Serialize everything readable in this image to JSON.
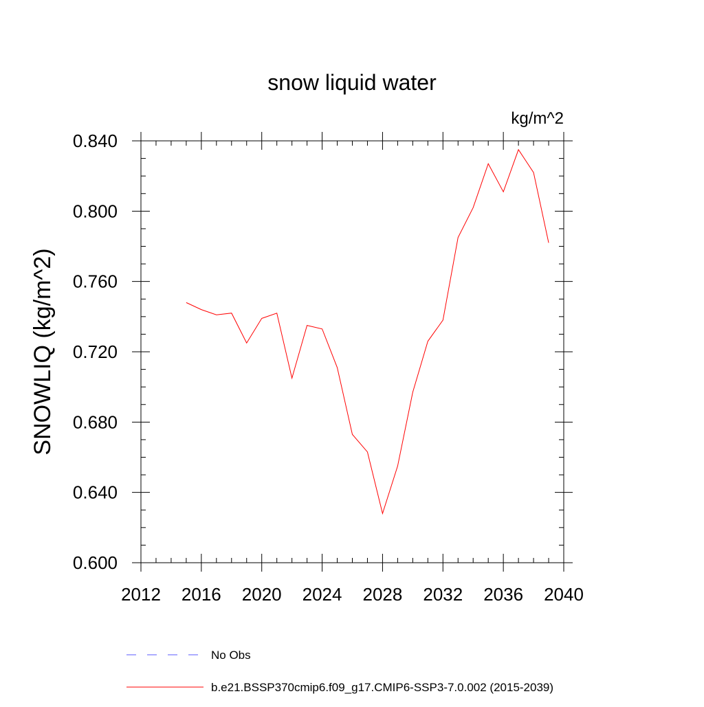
{
  "chart_data": {
    "type": "line",
    "title": "snow liquid water",
    "units_label": "kg/m^2",
    "ylabel": "SNOWLIQ  (kg/m^2)",
    "xlabel": "",
    "xlim": [
      2012,
      2040
    ],
    "ylim": [
      0.6,
      0.84
    ],
    "x_ticks": [
      2012,
      2016,
      2020,
      2024,
      2028,
      2032,
      2036,
      2040
    ],
    "x_tick_labels": [
      "2012",
      "2016",
      "2020",
      "2024",
      "2028",
      "2032",
      "2036",
      "2040"
    ],
    "x_minor_step": 1,
    "y_ticks": [
      0.6,
      0.64,
      0.68,
      0.72,
      0.76,
      0.8,
      0.84
    ],
    "y_tick_labels": [
      "0.600",
      "0.640",
      "0.680",
      "0.720",
      "0.760",
      "0.800",
      "0.840"
    ],
    "y_minor_step": 0.01,
    "grid": false,
    "legend_position": "bottom",
    "series": [
      {
        "name": "b.e21.BSSP370cmip6.f09_g17.CMIP6-SSP3-7.0.002 (2015-2039)",
        "color": "#ff0000",
        "dash": "solid",
        "x": [
          2015,
          2016,
          2017,
          2018,
          2019,
          2020,
          2021,
          2022,
          2023,
          2024,
          2025,
          2026,
          2027,
          2028,
          2029,
          2030,
          2031,
          2032,
          2033,
          2034,
          2035,
          2036,
          2037,
          2038,
          2039
        ],
        "values": [
          0.748,
          0.744,
          0.741,
          0.742,
          0.725,
          0.739,
          0.742,
          0.705,
          0.735,
          0.733,
          0.711,
          0.673,
          0.663,
          0.628,
          0.655,
          0.697,
          0.726,
          0.738,
          0.785,
          0.802,
          0.827,
          0.811,
          0.835,
          0.822,
          0.782
        ]
      }
    ],
    "legend": [
      {
        "label": "No Obs",
        "color": "#5a5aff",
        "dash": "dashed"
      },
      {
        "label": "b.e21.BSSP370cmip6.f09_g17.CMIP6-SSP3-7.0.002 (2015-2039)",
        "color": "#ff0000",
        "dash": "solid"
      }
    ]
  }
}
